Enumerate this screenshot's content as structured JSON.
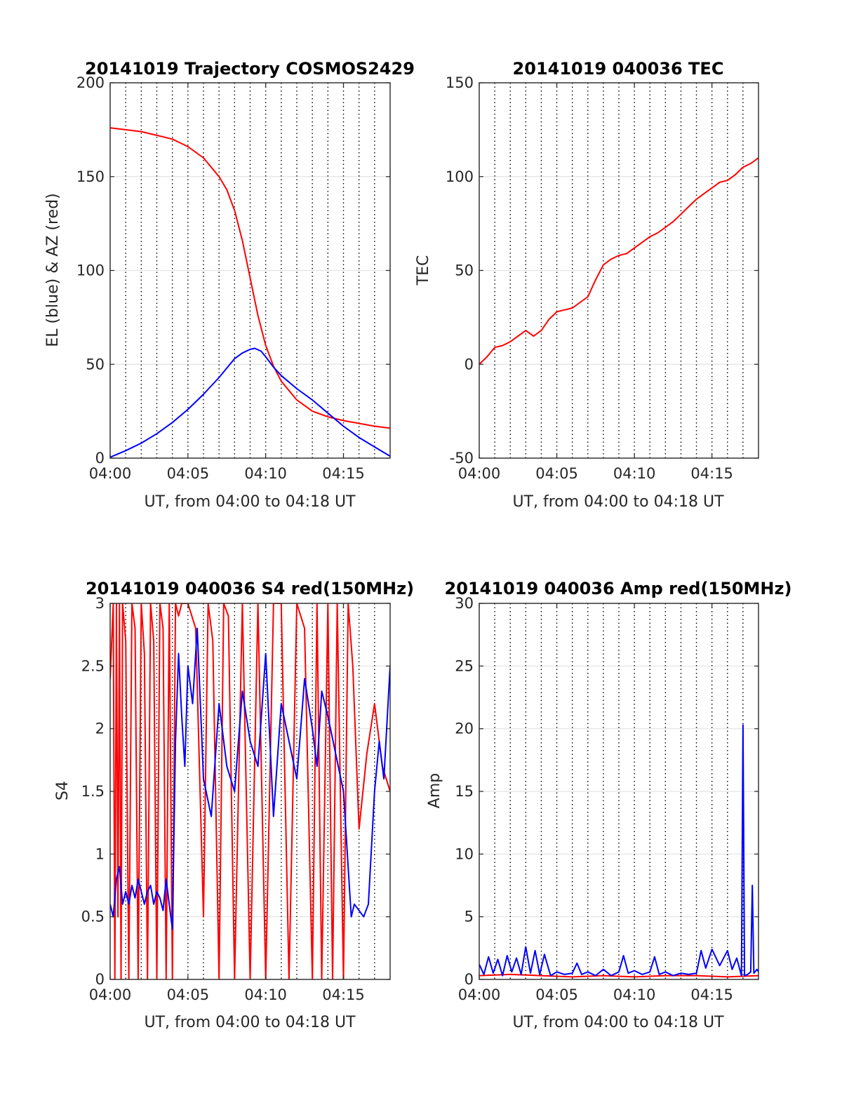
{
  "figure": {
    "background": "#ffffff"
  },
  "chart_data": [
    {
      "id": "trajectory",
      "type": "line",
      "title": "20141019 Trajectory COSMOS2429",
      "xlabel": "UT, from 04:00 to 04:18 UT",
      "ylabel": "EL (blue) & AZ (red)",
      "x_unit": "minutes after 04:00 UT",
      "xlim": [
        0,
        18
      ],
      "ylim": [
        0,
        200
      ],
      "xticks": [
        0,
        5,
        10,
        15
      ],
      "xtick_labels": [
        "04:00",
        "04:05",
        "04:10",
        "04:15"
      ],
      "yticks": [
        0,
        50,
        100,
        150,
        200
      ],
      "ytick_labels": [
        "0",
        "50",
        "100",
        "150",
        "200"
      ],
      "minute_gridlines": "dotted",
      "series": [
        {
          "color": "#ff0000",
          "x": [
            0.0,
            1,
            2,
            3,
            4,
            5,
            6,
            7,
            7.5,
            8,
            8.5,
            9,
            9.5,
            10,
            10.5,
            11,
            12,
            13,
            14,
            15,
            16,
            17,
            18
          ],
          "y": [
            176,
            175,
            174,
            172,
            170,
            166,
            160,
            150,
            143,
            132,
            116,
            96,
            76,
            60,
            49,
            41,
            31,
            25,
            22,
            20,
            18.5,
            17,
            16
          ]
        },
        {
          "color": "#0000ff",
          "x": [
            0.0,
            1,
            2,
            3,
            4,
            5,
            6,
            7,
            8,
            8.5,
            9,
            9.3,
            9.7,
            10,
            10.5,
            11,
            12,
            13,
            14,
            15,
            16,
            17,
            18
          ],
          "y": [
            0.5,
            4,
            8,
            13,
            19,
            26,
            34,
            43,
            53,
            56,
            58,
            58.5,
            57,
            54,
            48.5,
            44,
            37,
            31,
            24,
            17,
            11,
            6,
            1
          ]
        }
      ]
    },
    {
      "id": "tec",
      "type": "line",
      "title": "20141019 040036 TEC",
      "xlabel": "UT, from 04:00 to 04:18 UT",
      "ylabel": "TEC",
      "x_unit": "minutes after 04:00 UT",
      "xlim": [
        0,
        18
      ],
      "ylim": [
        -50,
        150
      ],
      "xticks": [
        0,
        5,
        10,
        15
      ],
      "xtick_labels": [
        "04:00",
        "04:05",
        "04:10",
        "04:15"
      ],
      "yticks": [
        -50,
        0,
        50,
        100,
        150
      ],
      "ytick_labels": [
        "-50",
        "0",
        "50",
        "100",
        "150"
      ],
      "minute_gridlines": "dotted",
      "series": [
        {
          "color": "#ff0000",
          "x": [
            0.0,
            0.5,
            1,
            1.5,
            2,
            2.5,
            3,
            3.5,
            4,
            4.5,
            5,
            5.5,
            6,
            6.5,
            7,
            7.5,
            8,
            8.5,
            9,
            9.5,
            10,
            10.5,
            11,
            11.5,
            12,
            12.5,
            13,
            13.5,
            14,
            14.5,
            15,
            15.5,
            16,
            16.5,
            17,
            17.5,
            18
          ],
          "y": [
            0,
            4,
            9,
            10,
            12,
            15,
            18,
            15,
            18,
            24,
            28,
            29,
            30,
            33,
            36,
            45,
            53,
            56,
            58,
            59,
            62,
            65,
            68,
            70,
            73,
            76,
            80,
            84,
            88,
            91,
            94,
            97,
            98,
            101,
            105,
            107,
            110
          ]
        }
      ]
    },
    {
      "id": "s4",
      "type": "line",
      "title": "20141019 040036 S4 red(150MHz)",
      "xlabel": "UT, from 04:00 to 04:18 UT",
      "ylabel": "S4",
      "x_unit": "minutes after 04:00 UT",
      "xlim": [
        0,
        18
      ],
      "ylim": [
        0,
        3
      ],
      "xticks": [
        0,
        5,
        10,
        15
      ],
      "xtick_labels": [
        "04:00",
        "04:05",
        "04:10",
        "04:15"
      ],
      "yticks": [
        0,
        0.5,
        1,
        1.5,
        2,
        2.5,
        3
      ],
      "ytick_labels": [
        "0",
        "0.5",
        "1",
        "1.5",
        "2",
        "2.5",
        "3"
      ],
      "minute_gridlines": "dotted",
      "red_series_note": "red trace saturates at 3 and drops to 0 frequently",
      "series": [
        {
          "color": "#ff0000",
          "x": [
            0.0,
            0.2,
            0.3,
            0.4,
            0.5,
            0.6,
            0.7,
            0.8,
            1.0,
            1.2,
            1.4,
            1.6,
            1.8,
            2.0,
            2.2,
            2.4,
            2.6,
            2.8,
            3.0,
            3.2,
            3.4,
            3.6,
            3.8,
            4.0,
            4.2,
            4.4,
            4.6,
            4.8,
            5.0,
            5.5,
            6.0,
            6.3,
            6.6,
            7.0,
            7.3,
            7.6,
            8.0,
            8.5,
            9.0,
            9.5,
            10.0,
            10.5,
            11.0,
            11.5,
            12.0,
            12.5,
            13.0,
            13.3,
            13.6,
            14.0,
            14.3,
            14.6,
            15.0,
            15.3,
            15.6,
            16.0,
            16.5,
            17.0,
            17.5,
            18.0
          ],
          "y": [
            2.4,
            3,
            0,
            3,
            0.5,
            3,
            0,
            3,
            2.7,
            0,
            3,
            2.8,
            0,
            3,
            2.6,
            0,
            3,
            2.7,
            0,
            3,
            2.8,
            0,
            3,
            0,
            3,
            2.9,
            3,
            3,
            3,
            2.8,
            0.5,
            3,
            2.7,
            0,
            3,
            2.9,
            0,
            3,
            0,
            3,
            0,
            3,
            3,
            0,
            3,
            2.8,
            0,
            3,
            0,
            3,
            0,
            3,
            0,
            3,
            2.5,
            1.2,
            1.8,
            2.2,
            1.7,
            1.5
          ]
        },
        {
          "color": "#0000ff",
          "x": [
            0.0,
            0.2,
            0.4,
            0.6,
            0.8,
            1.0,
            1.2,
            1.4,
            1.6,
            1.8,
            2.0,
            2.2,
            2.4,
            2.6,
            2.8,
            3.0,
            3.2,
            3.4,
            3.6,
            3.8,
            4.0,
            4.2,
            4.4,
            4.6,
            4.8,
            5.0,
            5.3,
            5.6,
            6.0,
            6.5,
            7.0,
            7.5,
            8.0,
            8.5,
            9.0,
            9.5,
            10.0,
            10.5,
            11.0,
            11.5,
            12.0,
            12.5,
            13.0,
            13.3,
            13.6,
            14.0,
            14.5,
            15.0,
            15.5,
            15.7,
            16.0,
            16.3,
            16.6,
            17.0,
            17.3,
            17.6,
            18.0
          ],
          "y": [
            0.6,
            0.5,
            0.8,
            0.9,
            0.6,
            0.7,
            0.6,
            0.75,
            0.65,
            0.8,
            0.7,
            0.6,
            0.7,
            0.75,
            0.6,
            0.7,
            0.65,
            0.55,
            0.8,
            0.6,
            0.4,
            1.9,
            2.6,
            2.1,
            1.7,
            2.5,
            2.2,
            2.8,
            1.6,
            1.3,
            2.2,
            1.7,
            1.5,
            2.3,
            1.9,
            1.7,
            2.6,
            1.3,
            2.2,
            1.9,
            1.6,
            2.4,
            2.0,
            1.7,
            2.3,
            2.1,
            1.8,
            1.5,
            0.5,
            0.6,
            0.55,
            0.5,
            0.6,
            1.5,
            1.9,
            1.6,
            2.5
          ]
        }
      ]
    },
    {
      "id": "amp",
      "type": "line",
      "title": "20141019 040036 Amp red(150MHz)",
      "xlabel": "UT, from 04:00 to 04:18 UT",
      "ylabel": "Amp",
      "x_unit": "minutes after 04:00 UT",
      "xlim": [
        0,
        18
      ],
      "ylim": [
        0,
        30
      ],
      "xticks": [
        0,
        5,
        10,
        15
      ],
      "xtick_labels": [
        "04:00",
        "04:05",
        "04:10",
        "04:15"
      ],
      "yticks": [
        0,
        5,
        10,
        15,
        20,
        25,
        30
      ],
      "ytick_labels": [
        "0",
        "5",
        "10",
        "15",
        "20",
        "25",
        "30"
      ],
      "minute_gridlines": "dotted",
      "series": [
        {
          "color": "#ff0000",
          "x": [
            0.0,
            2.0,
            4.0,
            6.0,
            8.0,
            10.0,
            12.0,
            14.0,
            16.0,
            18.0
          ],
          "y": [
            0.3,
            0.4,
            0.3,
            0.2,
            0.3,
            0.2,
            0.3,
            0.3,
            0.2,
            0.3
          ]
        },
        {
          "color": "#0000ff",
          "x": [
            0.0,
            0.3,
            0.6,
            0.9,
            1.2,
            1.5,
            1.8,
            2.1,
            2.4,
            2.7,
            3.0,
            3.3,
            3.6,
            3.9,
            4.2,
            4.6,
            5.0,
            5.5,
            6.0,
            6.3,
            6.6,
            7.0,
            7.5,
            8.0,
            8.5,
            9.0,
            9.3,
            9.6,
            10.0,
            10.5,
            11.0,
            11.3,
            11.6,
            12.0,
            12.5,
            13.0,
            13.5,
            14.0,
            14.3,
            14.6,
            15.0,
            15.5,
            16.0,
            16.3,
            16.6,
            16.9,
            17.0,
            17.1,
            17.3,
            17.5,
            17.6,
            17.7,
            17.9,
            18.0
          ],
          "y": [
            1.2,
            0.4,
            1.8,
            0.5,
            1.6,
            0.3,
            1.9,
            0.6,
            1.7,
            0.4,
            2.6,
            0.5,
            2.3,
            0.4,
            2.0,
            0.3,
            0.6,
            0.4,
            0.5,
            1.3,
            0.4,
            0.6,
            0.3,
            0.8,
            0.3,
            0.6,
            1.9,
            0.5,
            0.7,
            0.4,
            0.6,
            1.8,
            0.4,
            0.6,
            0.3,
            0.5,
            0.4,
            0.5,
            2.3,
            0.9,
            2.4,
            1.1,
            2.3,
            0.8,
            1.7,
            0.3,
            20.3,
            0.3,
            0.4,
            0.6,
            7.5,
            0.5,
            0.8,
            0.6
          ]
        }
      ]
    }
  ]
}
